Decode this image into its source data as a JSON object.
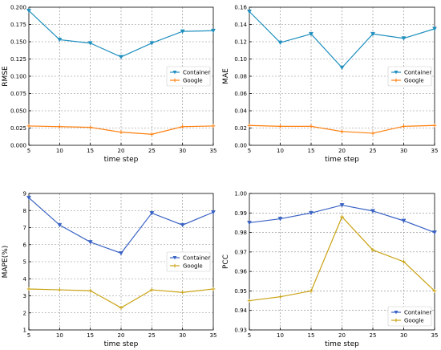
{
  "chart_data": [
    {
      "type": "line",
      "x": [
        5,
        10,
        15,
        20,
        25,
        30,
        35
      ],
      "xlabel": "time step",
      "ylabel": "RMSE",
      "xlim": [
        5,
        35
      ],
      "ylim": [
        0.0,
        0.2
      ],
      "xticks": [
        "5",
        "10",
        "15",
        "20",
        "25",
        "30",
        "35"
      ],
      "yticks": [
        "0.000",
        "0.025",
        "0.050",
        "0.075",
        "0.100",
        "0.125",
        "0.150",
        "0.175",
        "0.200"
      ],
      "grid": true,
      "legend_position": "center-right",
      "series": [
        {
          "name": "Container",
          "color": "#1f8fbf",
          "marker": "triangle-down",
          "values": [
            0.195,
            0.153,
            0.148,
            0.128,
            0.148,
            0.165,
            0.166
          ]
        },
        {
          "name": "Google",
          "color": "#ff7f0e",
          "marker": "plus",
          "values": [
            0.028,
            0.027,
            0.026,
            0.019,
            0.016,
            0.027,
            0.028
          ]
        }
      ]
    },
    {
      "type": "line",
      "x": [
        5,
        10,
        15,
        20,
        25,
        30,
        35
      ],
      "xlabel": "time step",
      "ylabel": "MAE",
      "xlim": [
        5,
        35
      ],
      "ylim": [
        0.0,
        0.16
      ],
      "xticks": [
        "5",
        "10",
        "15",
        "20",
        "25",
        "30",
        "35"
      ],
      "yticks": [
        "0.00",
        "0.02",
        "0.04",
        "0.06",
        "0.08",
        "0.10",
        "0.12",
        "0.14",
        "0.16"
      ],
      "grid": true,
      "legend_position": "center-right",
      "series": [
        {
          "name": "Container",
          "color": "#1f8fbf",
          "marker": "triangle-down",
          "values": [
            0.155,
            0.119,
            0.129,
            0.09,
            0.129,
            0.124,
            0.135
          ]
        },
        {
          "name": "Google",
          "color": "#ff7f0e",
          "marker": "plus",
          "values": [
            0.023,
            0.022,
            0.022,
            0.016,
            0.014,
            0.022,
            0.023
          ]
        }
      ]
    },
    {
      "type": "line",
      "x": [
        5,
        10,
        15,
        20,
        25,
        30,
        35
      ],
      "xlabel": "time step",
      "ylabel": "MAPE(%)",
      "xlim": [
        5,
        35
      ],
      "ylim": [
        1,
        9
      ],
      "xticks": [
        "5",
        "10",
        "15",
        "20",
        "25",
        "30",
        "35"
      ],
      "yticks": [
        "1",
        "2",
        "3",
        "4",
        "5",
        "6",
        "7",
        "8",
        "9"
      ],
      "grid": true,
      "legend_position": "center-right",
      "series": [
        {
          "name": "Container",
          "color": "#3a63c4",
          "marker": "triangle-down",
          "values": [
            8.75,
            7.15,
            6.15,
            5.5,
            7.85,
            7.15,
            7.9
          ]
        },
        {
          "name": "Google",
          "color": "#c9a213",
          "marker": "plus",
          "values": [
            3.4,
            3.35,
            3.3,
            2.3,
            3.35,
            3.2,
            3.4
          ]
        }
      ]
    },
    {
      "type": "line",
      "x": [
        5,
        10,
        15,
        20,
        25,
        30,
        35
      ],
      "xlabel": "time step",
      "ylabel": "PCC",
      "xlim": [
        5,
        35
      ],
      "ylim": [
        0.93,
        1.0
      ],
      "xticks": [
        "5",
        "10",
        "15",
        "20",
        "25",
        "30",
        "35"
      ],
      "yticks": [
        "0.93",
        "0.94",
        "0.95",
        "0.96",
        "0.97",
        "0.98",
        "0.99",
        "1.00"
      ],
      "grid": true,
      "legend_position": "bottom-right",
      "series": [
        {
          "name": "Container",
          "color": "#3a63c4",
          "marker": "triangle-down",
          "values": [
            0.985,
            0.987,
            0.99,
            0.994,
            0.991,
            0.986,
            0.98
          ]
        },
        {
          "name": "Google",
          "color": "#c9a213",
          "marker": "plus",
          "values": [
            0.945,
            0.947,
            0.95,
            0.988,
            0.971,
            0.965,
            0.95
          ]
        }
      ]
    }
  ]
}
